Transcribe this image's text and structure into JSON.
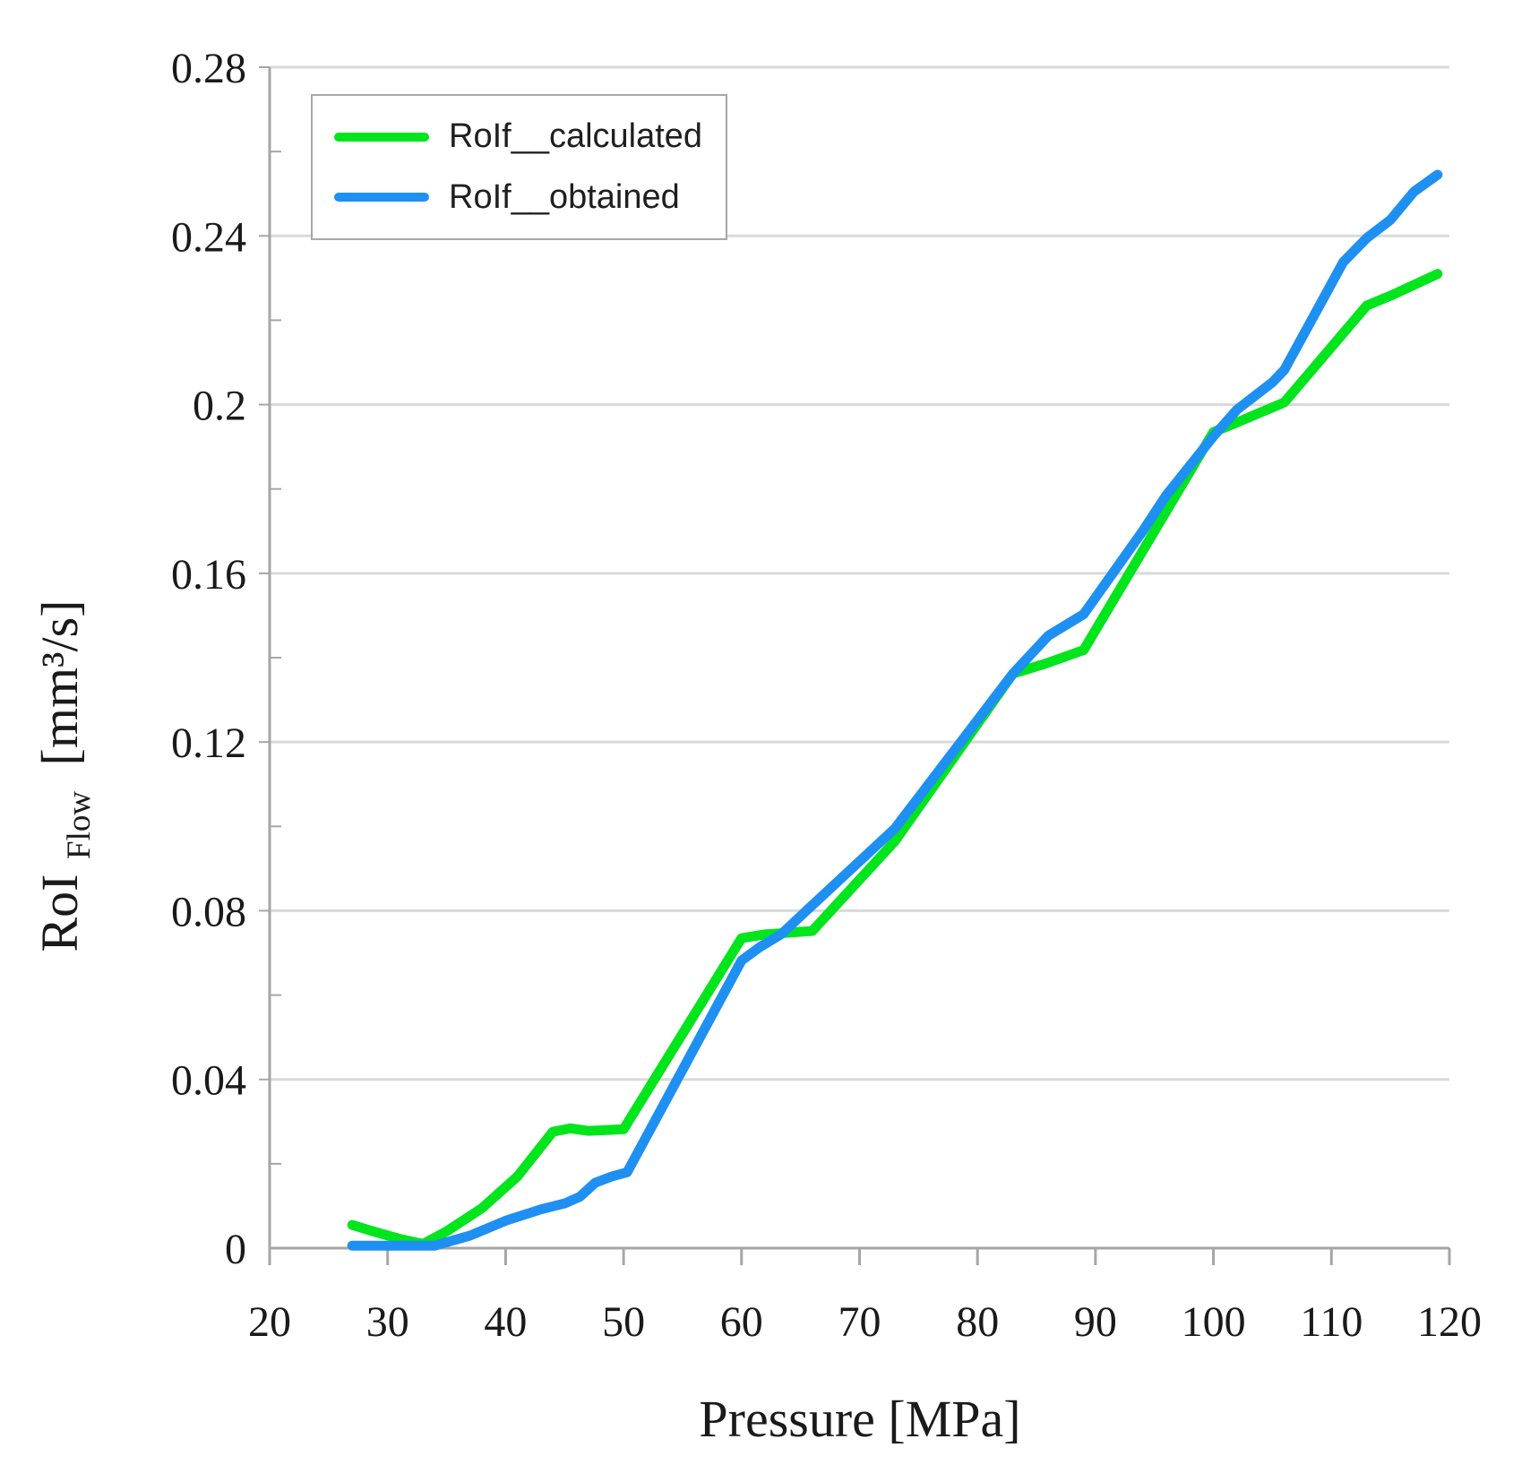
{
  "chart_data": {
    "type": "line",
    "title": "",
    "xlabel": "Pressure [MPa]",
    "ylabel": "RoI_Flow [mm³/s]",
    "ylabel_parts": {
      "main": "RoI",
      "sub": "Flow",
      "unit": "[mm³/s]"
    },
    "xlim": [
      20,
      120
    ],
    "ylim": [
      0,
      0.28
    ],
    "grid": "horizontal",
    "colors": {
      "background": "#ffffff",
      "gridline": "#d9d9d9",
      "axis": "#a6a6a6",
      "text": "#1a1a1a",
      "calculated_green": "#00e51c",
      "obtained_blue": "#1e90f2"
    },
    "axes": {
      "x_ticks": [
        {
          "v": 20,
          "label": "20"
        },
        {
          "v": 30,
          "label": "30"
        },
        {
          "v": 40,
          "label": "40"
        },
        {
          "v": 50,
          "label": "50"
        },
        {
          "v": 60,
          "label": "60"
        },
        {
          "v": 70,
          "label": "70"
        },
        {
          "v": 80,
          "label": "80"
        },
        {
          "v": 90,
          "label": "90"
        },
        {
          "v": 100,
          "label": "100"
        },
        {
          "v": 110,
          "label": "110"
        },
        {
          "v": 120,
          "label": "120"
        }
      ],
      "y_ticks": [
        {
          "v": 0,
          "label": "0"
        },
        {
          "v": 0.04,
          "label": "0.04"
        },
        {
          "v": 0.08,
          "label": "0.08"
        },
        {
          "v": 0.12,
          "label": "0.12"
        },
        {
          "v": 0.16,
          "label": "0.16"
        },
        {
          "v": 0.2,
          "label": "0.2"
        },
        {
          "v": 0.24,
          "label": "0.24"
        },
        {
          "v": 0.28,
          "label": "0.28"
        }
      ],
      "y_minor_ticks": [
        0.02,
        0.06,
        0.1,
        0.14,
        0.18,
        0.22,
        0.26
      ]
    },
    "legend": {
      "position": "top-left",
      "entries": [
        {
          "id": "calculated",
          "label": "RoIf__calculated",
          "color": "#00e51c"
        },
        {
          "id": "obtained",
          "label": "RoIf__obtained",
          "color": "#1e90f2"
        }
      ]
    },
    "series": [
      {
        "id": "calculated",
        "name": "RoIf__calculated",
        "color": "#00e51c",
        "points": [
          [
            27,
            0.0055
          ],
          [
            29,
            0.0038
          ],
          [
            31,
            0.0022
          ],
          [
            33,
            0.001
          ],
          [
            35,
            0.004
          ],
          [
            38,
            0.0095
          ],
          [
            41,
            0.017
          ],
          [
            44,
            0.0276
          ],
          [
            45.5,
            0.0284
          ],
          [
            47,
            0.0278
          ],
          [
            48.5,
            0.028
          ],
          [
            50,
            0.0282
          ],
          [
            60,
            0.0735
          ],
          [
            62,
            0.0744
          ],
          [
            66,
            0.0752
          ],
          [
            73,
            0.0965
          ],
          [
            83,
            0.1362
          ],
          [
            86,
            0.1388
          ],
          [
            89,
            0.1418
          ],
          [
            100,
            0.1935
          ],
          [
            101.5,
            0.1952
          ],
          [
            106,
            0.2005
          ],
          [
            113,
            0.2235
          ],
          [
            115,
            0.2258
          ],
          [
            119,
            0.231
          ]
        ]
      },
      {
        "id": "obtained",
        "name": "RoIf__obtained",
        "color": "#1e90f2",
        "points": [
          [
            27,
            0.0006
          ],
          [
            34,
            0.0006
          ],
          [
            37,
            0.003
          ],
          [
            40,
            0.0065
          ],
          [
            43,
            0.0092
          ],
          [
            45,
            0.0106
          ],
          [
            46.3,
            0.0122
          ],
          [
            47.6,
            0.0155
          ],
          [
            49,
            0.017
          ],
          [
            50.3,
            0.018
          ],
          [
            60,
            0.0682
          ],
          [
            61.5,
            0.0713
          ],
          [
            63.4,
            0.0745
          ],
          [
            65.3,
            0.0795
          ],
          [
            73,
            0.0995
          ],
          [
            83,
            0.1362
          ],
          [
            86,
            0.1452
          ],
          [
            89,
            0.1503
          ],
          [
            94,
            0.17
          ],
          [
            96,
            0.1785
          ],
          [
            100,
            0.1925
          ],
          [
            102,
            0.1988
          ],
          [
            105,
            0.2053
          ],
          [
            106,
            0.2082
          ],
          [
            111,
            0.2338
          ],
          [
            113,
            0.2395
          ],
          [
            115,
            0.2438
          ],
          [
            117,
            0.2505
          ],
          [
            119,
            0.2545
          ]
        ]
      }
    ]
  }
}
